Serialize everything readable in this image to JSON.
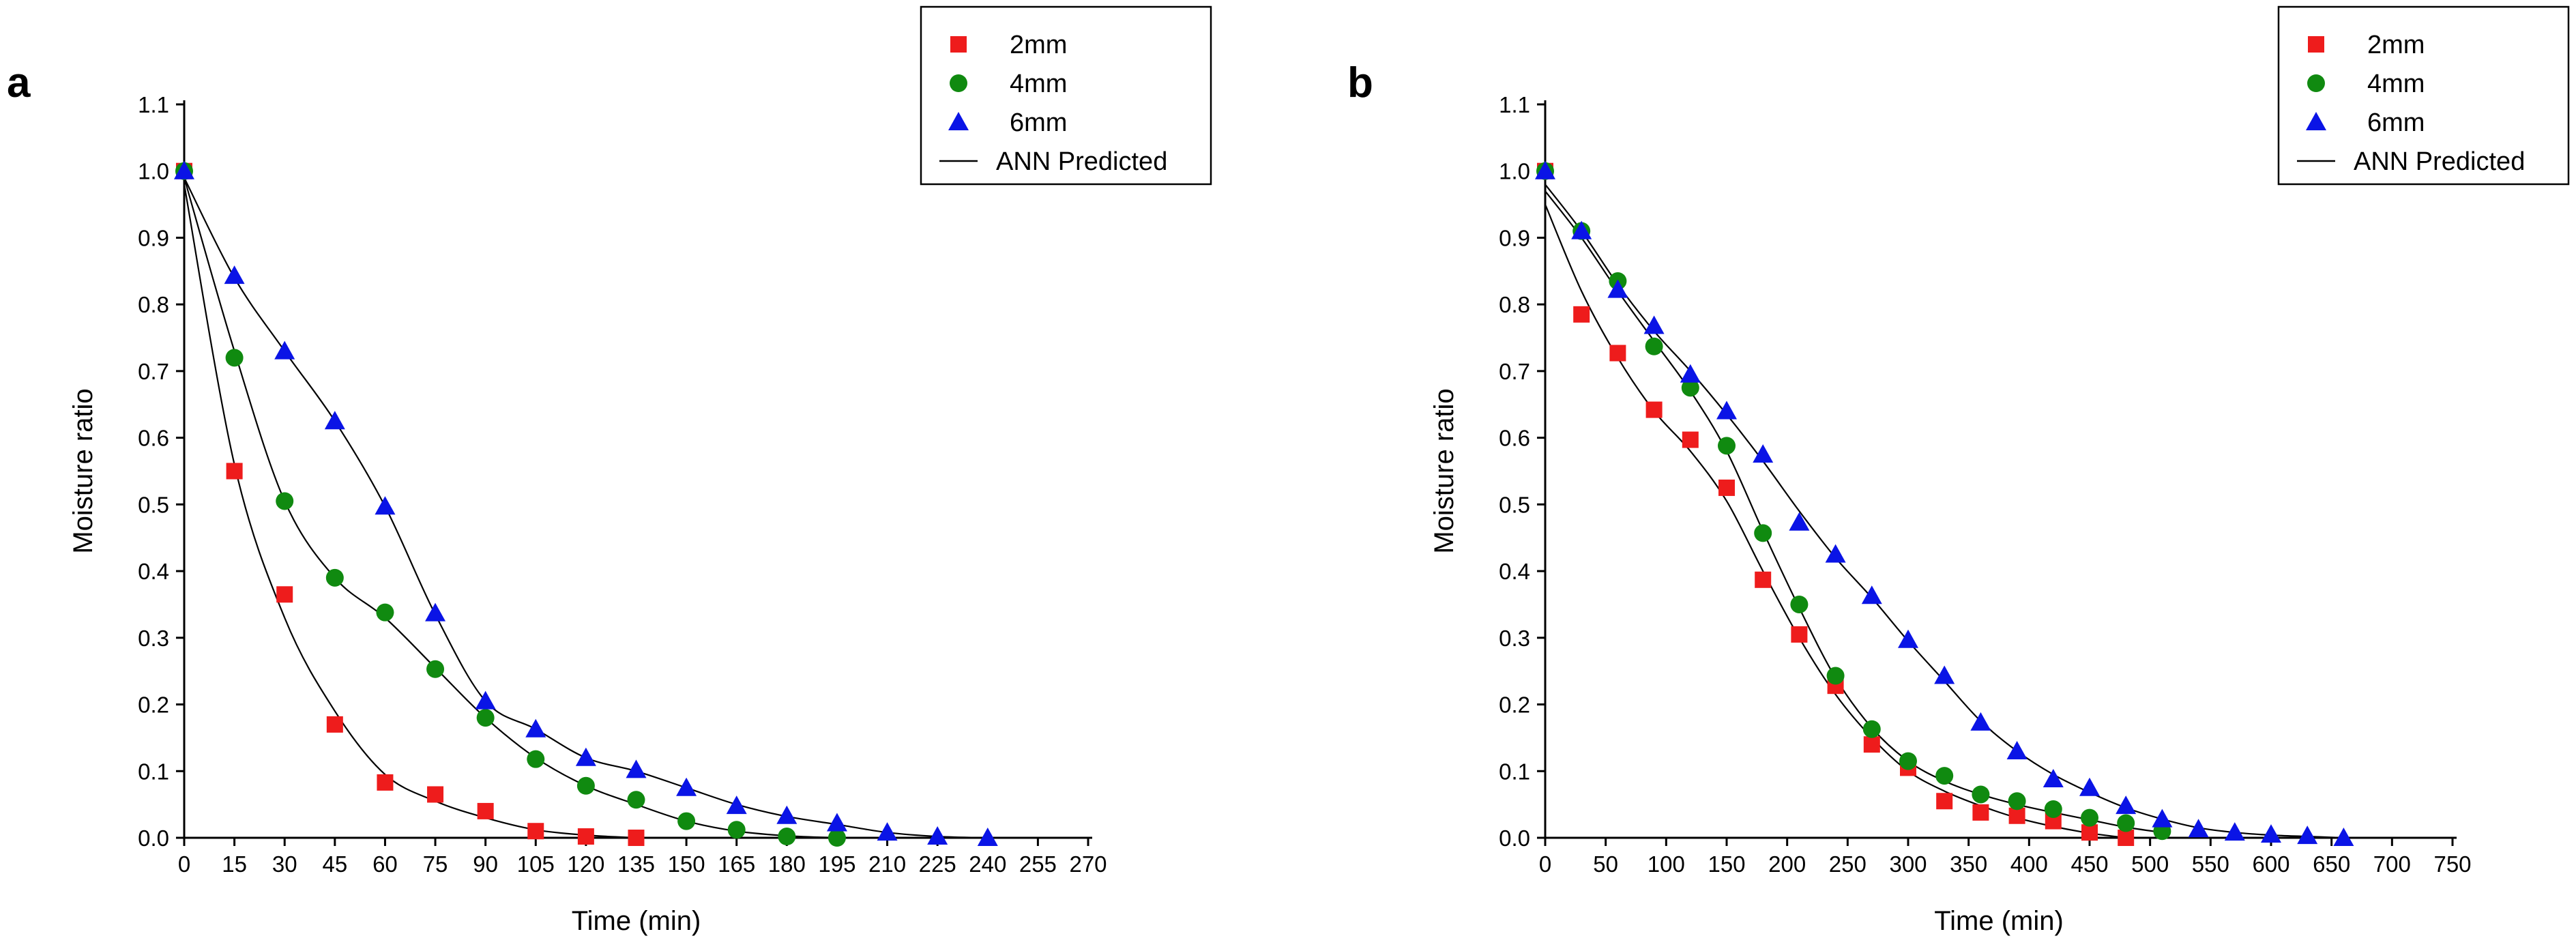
{
  "chart_data": [
    {
      "panel_label": "a",
      "type": "scatter",
      "xlabel": "Time (min)",
      "ylabel": "Moisture ratio",
      "xlim": [
        0,
        270
      ],
      "ylim": [
        0,
        1.1
      ],
      "xticks": [
        0,
        15,
        30,
        45,
        60,
        75,
        90,
        105,
        120,
        135,
        150,
        165,
        180,
        195,
        210,
        225,
        240,
        255,
        270
      ],
      "yticks": [
        0.0,
        0.1,
        0.2,
        0.3,
        0.4,
        0.5,
        0.6,
        0.7,
        0.8,
        0.9,
        1.0,
        1.1
      ],
      "legend_position": "top-right",
      "series": [
        {
          "name": "2mm",
          "marker": "square",
          "color": "#ee1c1c",
          "x": [
            0,
            15,
            30,
            45,
            60,
            75,
            90,
            105,
            120,
            135
          ],
          "y": [
            1.0,
            0.55,
            0.365,
            0.17,
            0.083,
            0.065,
            0.04,
            0.01,
            0.002,
            0.0
          ]
        },
        {
          "name": "4mm",
          "marker": "circle",
          "color": "#108a10",
          "x": [
            0,
            15,
            30,
            45,
            60,
            75,
            90,
            105,
            120,
            135,
            150,
            165,
            180,
            195
          ],
          "y": [
            1.0,
            0.72,
            0.505,
            0.39,
            0.338,
            0.253,
            0.18,
            0.118,
            0.078,
            0.057,
            0.025,
            0.012,
            0.002,
            0.0
          ]
        },
        {
          "name": "6mm",
          "marker": "triangle",
          "color": "#0a14e6",
          "x": [
            0,
            15,
            30,
            45,
            60,
            75,
            90,
            105,
            120,
            135,
            150,
            165,
            180,
            195,
            210,
            225,
            240
          ],
          "y": [
            1.0,
            0.843,
            0.73,
            0.625,
            0.497,
            0.337,
            0.205,
            0.163,
            0.12,
            0.102,
            0.075,
            0.048,
            0.033,
            0.022,
            0.008,
            0.002,
            0.0
          ]
        },
        {
          "name": "ANN Predicted",
          "marker": "line",
          "color": "#000000",
          "curves": [
            {
              "x": [
                0,
                15,
                30,
                45,
                60,
                75,
                90,
                105,
                120,
                135
              ],
              "y": [
                0.98,
                0.56,
                0.33,
                0.19,
                0.095,
                0.055,
                0.03,
                0.012,
                0.004,
                0.0
              ]
            },
            {
              "x": [
                0,
                15,
                30,
                45,
                60,
                75,
                90,
                105,
                120,
                135,
                150,
                165,
                180,
                195
              ],
              "y": [
                0.99,
                0.73,
                0.505,
                0.39,
                0.33,
                0.255,
                0.18,
                0.12,
                0.078,
                0.05,
                0.025,
                0.01,
                0.003,
                0.0
              ]
            },
            {
              "x": [
                0,
                15,
                30,
                45,
                60,
                75,
                90,
                105,
                120,
                135,
                150,
                165,
                180,
                195,
                210,
                225,
                240
              ],
              "y": [
                0.99,
                0.84,
                0.73,
                0.625,
                0.497,
                0.335,
                0.205,
                0.163,
                0.12,
                0.1,
                0.075,
                0.05,
                0.032,
                0.02,
                0.008,
                0.002,
                0.0
              ]
            }
          ]
        }
      ]
    },
    {
      "panel_label": "b",
      "type": "scatter",
      "xlabel": "Time (min)",
      "ylabel": "Moisture ratio",
      "xlim": [
        0,
        750
      ],
      "ylim": [
        0,
        1.1
      ],
      "xticks": [
        0,
        50,
        100,
        150,
        200,
        250,
        300,
        350,
        400,
        450,
        500,
        550,
        600,
        650,
        700,
        750
      ],
      "yticks": [
        0.0,
        0.1,
        0.2,
        0.3,
        0.4,
        0.5,
        0.6,
        0.7,
        0.8,
        0.9,
        1.0,
        1.1
      ],
      "legend_position": "top-right",
      "series": [
        {
          "name": "2mm",
          "marker": "square",
          "color": "#ee1c1c",
          "x": [
            0,
            30,
            60,
            90,
            120,
            150,
            180,
            210,
            240,
            270,
            300,
            330,
            360,
            390,
            420,
            450,
            480
          ],
          "y": [
            1.0,
            0.785,
            0.727,
            0.642,
            0.597,
            0.525,
            0.387,
            0.305,
            0.228,
            0.14,
            0.105,
            0.055,
            0.038,
            0.033,
            0.025,
            0.008,
            0.0
          ]
        },
        {
          "name": "4mm",
          "marker": "circle",
          "color": "#108a10",
          "x": [
            0,
            30,
            60,
            90,
            120,
            150,
            180,
            210,
            240,
            270,
            300,
            330,
            360,
            390,
            420,
            450,
            480,
            510
          ],
          "y": [
            1.0,
            0.91,
            0.835,
            0.737,
            0.675,
            0.588,
            0.457,
            0.35,
            0.243,
            0.163,
            0.115,
            0.093,
            0.065,
            0.055,
            0.043,
            0.03,
            0.022,
            0.01
          ]
        },
        {
          "name": "6mm",
          "marker": "triangle",
          "color": "#0a14e6",
          "x": [
            0,
            30,
            60,
            90,
            120,
            150,
            180,
            210,
            240,
            270,
            300,
            330,
            360,
            390,
            420,
            450,
            480,
            510,
            540,
            570,
            600,
            630,
            660
          ],
          "y": [
            1.0,
            0.91,
            0.822,
            0.768,
            0.695,
            0.64,
            0.575,
            0.473,
            0.425,
            0.363,
            0.297,
            0.243,
            0.173,
            0.13,
            0.088,
            0.075,
            0.048,
            0.028,
            0.013,
            0.008,
            0.005,
            0.003,
            0.0
          ]
        },
        {
          "name": "ANN Predicted",
          "marker": "line",
          "color": "#000000",
          "curves": [
            {
              "x": [
                0,
                30,
                60,
                90,
                120,
                150,
                180,
                210,
                240,
                270,
                300,
                330,
                360,
                390,
                420,
                450,
                480
              ],
              "y": [
                0.95,
                0.82,
                0.72,
                0.64,
                0.58,
                0.505,
                0.4,
                0.3,
                0.215,
                0.15,
                0.1,
                0.07,
                0.048,
                0.03,
                0.017,
                0.007,
                0.0
              ]
            },
            {
              "x": [
                0,
                30,
                60,
                90,
                120,
                150,
                180,
                210,
                240,
                270,
                300,
                330,
                360,
                390,
                420,
                450,
                480,
                510
              ],
              "y": [
                0.97,
                0.9,
                0.82,
                0.745,
                0.67,
                0.58,
                0.46,
                0.345,
                0.24,
                0.165,
                0.115,
                0.085,
                0.065,
                0.05,
                0.038,
                0.027,
                0.016,
                0.008
              ]
            },
            {
              "x": [
                0,
                30,
                60,
                90,
                120,
                150,
                180,
                210,
                240,
                270,
                300,
                330,
                360,
                390,
                420,
                450,
                480,
                510,
                540,
                570,
                600,
                630,
                660
              ],
              "y": [
                0.98,
                0.91,
                0.83,
                0.76,
                0.7,
                0.635,
                0.565,
                0.49,
                0.42,
                0.36,
                0.295,
                0.235,
                0.175,
                0.13,
                0.095,
                0.068,
                0.045,
                0.028,
                0.015,
                0.008,
                0.004,
                0.002,
                0.0
              ]
            }
          ]
        }
      ]
    }
  ]
}
